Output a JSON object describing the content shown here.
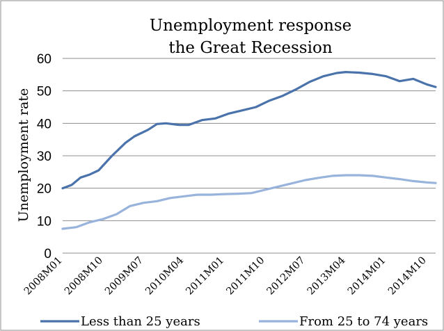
{
  "chart_data": {
    "type": "line",
    "title": [
      "Unemployment response",
      "the Great Recession"
    ],
    "ylabel": "Unemployment rate",
    "xlabel": "",
    "ylim": [
      0,
      60
    ],
    "yticks": [
      0,
      10,
      20,
      30,
      40,
      50,
      60
    ],
    "x_tick_labels": [
      "2008M01",
      "2008M10",
      "2009M07",
      "2010M04",
      "2011M01",
      "2011M10",
      "2012M07",
      "2013M04",
      "2014M01",
      "2014M10"
    ],
    "x_start": "2008M01",
    "x_end": "2014M12",
    "grid": "horizontal",
    "legend_position": "bottom",
    "series": [
      {
        "name": "Less than 25 years",
        "color": "#4a72ab",
        "points": [
          [
            "2008M01",
            20.0
          ],
          [
            "2008M03",
            21.0
          ],
          [
            "2008M05",
            23.3
          ],
          [
            "2008M07",
            24.2
          ],
          [
            "2008M09",
            25.5
          ],
          [
            "2008M10",
            27.0
          ],
          [
            "2008M12",
            30.0
          ],
          [
            "2009M03",
            34.0
          ],
          [
            "2009M05",
            36.0
          ],
          [
            "2009M08",
            38.0
          ],
          [
            "2009M10",
            39.8
          ],
          [
            "2009M12",
            40.0
          ],
          [
            "2010M03",
            39.5
          ],
          [
            "2010M05",
            39.5
          ],
          [
            "2010M08",
            41.0
          ],
          [
            "2010M11",
            41.5
          ],
          [
            "2011M02",
            43.0
          ],
          [
            "2011M05",
            44.0
          ],
          [
            "2011M08",
            45.0
          ],
          [
            "2011M11",
            47.0
          ],
          [
            "2012M02",
            48.5
          ],
          [
            "2012M05",
            50.5
          ],
          [
            "2012M08",
            52.8
          ],
          [
            "2012M11",
            54.5
          ],
          [
            "2013M02",
            55.5
          ],
          [
            "2013M04",
            55.8
          ],
          [
            "2013M07",
            55.6
          ],
          [
            "2013M10",
            55.2
          ],
          [
            "2014M01",
            54.5
          ],
          [
            "2014M04",
            53.0
          ],
          [
            "2014M07",
            53.7
          ],
          [
            "2014M10",
            52.0
          ],
          [
            "2014M12",
            51.2
          ]
        ]
      },
      {
        "name": "From 25 to 74 years",
        "color": "#98b3dc",
        "points": [
          [
            "2008M01",
            7.5
          ],
          [
            "2008M04",
            8.0
          ],
          [
            "2008M07",
            9.5
          ],
          [
            "2008M10",
            10.5
          ],
          [
            "2009M01",
            12.0
          ],
          [
            "2009M04",
            14.5
          ],
          [
            "2009M07",
            15.5
          ],
          [
            "2009M10",
            16.0
          ],
          [
            "2010M01",
            17.0
          ],
          [
            "2010M04",
            17.5
          ],
          [
            "2010M07",
            18.0
          ],
          [
            "2010M10",
            18.0
          ],
          [
            "2011M01",
            18.2
          ],
          [
            "2011M04",
            18.3
          ],
          [
            "2011M07",
            18.5
          ],
          [
            "2011M10",
            19.5
          ],
          [
            "2012M01",
            20.5
          ],
          [
            "2012M04",
            21.5
          ],
          [
            "2012M07",
            22.5
          ],
          [
            "2012M10",
            23.2
          ],
          [
            "2013M01",
            23.8
          ],
          [
            "2013M04",
            24.0
          ],
          [
            "2013M07",
            24.0
          ],
          [
            "2013M10",
            23.8
          ],
          [
            "2014M01",
            23.3
          ],
          [
            "2014M04",
            22.8
          ],
          [
            "2014M07",
            22.2
          ],
          [
            "2014M10",
            21.8
          ],
          [
            "2014M12",
            21.6
          ]
        ]
      }
    ]
  }
}
